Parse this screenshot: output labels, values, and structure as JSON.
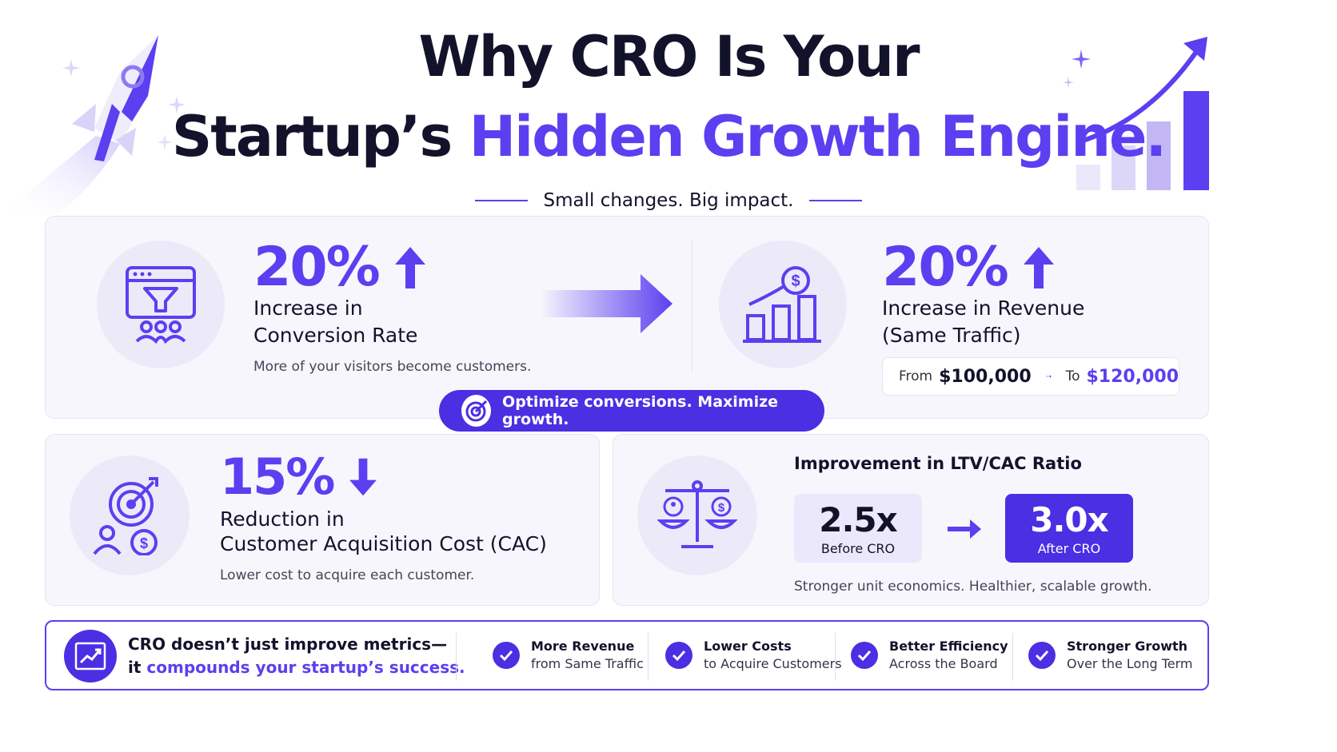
{
  "header": {
    "title_line1": "Why CRO Is Your",
    "title_line2_a": "Startup’s",
    "title_line2_b": "Hidden Growth Engine.",
    "subtitle": "Small changes. Big impact."
  },
  "conversion": {
    "value": "20%",
    "label_line1": "Increase in",
    "label_line2": "Conversion Rate",
    "description": "More of your visitors become customers."
  },
  "revenue": {
    "value": "20%",
    "label_line1": "Increase in Revenue",
    "label_line2": "(Same Traffic)",
    "from_label": "From",
    "from_value": "$100,000",
    "to_label": "To",
    "to_value": "$120,000"
  },
  "pill": {
    "text": "Optimize conversions. Maximize growth."
  },
  "cac": {
    "value": "15%",
    "label_line1": "Reduction in",
    "label_line2": "Customer Acquisition Cost (CAC)",
    "description": "Lower cost to acquire each customer."
  },
  "ltv": {
    "title": "Improvement in LTV/CAC Ratio",
    "before_value": "2.5x",
    "before_label": "Before CRO",
    "after_value": "3.0x",
    "after_label": "After CRO",
    "description": "Stronger unit economics. Healthier, scalable growth."
  },
  "bottom": {
    "headline_line1": "CRO doesn’t just improve metrics—",
    "headline_line2_a": "it",
    "headline_line2_b": "compounds your startup’s success.",
    "benefits": [
      {
        "title": "More Revenue",
        "subtitle": "from Same Traffic"
      },
      {
        "title": "Lower Costs",
        "subtitle": "to Acquire Customers"
      },
      {
        "title": "Better Efficiency",
        "subtitle": "Across the Board"
      },
      {
        "title": "Stronger Growth",
        "subtitle": "Over the Long Term"
      }
    ]
  },
  "colors": {
    "accent": "#5b3ff0",
    "accent_dark": "#4a2fe3",
    "ink": "#12132b",
    "card_bg": "#f7f6fd"
  },
  "icons": [
    "rocket-icon",
    "sparkle-icon",
    "growth-chart-icon",
    "funnel-browser-icon",
    "arrow-up-icon",
    "arrow-right-icon",
    "revenue-chart-icon",
    "target-icon",
    "arrow-down-icon",
    "scale-icon",
    "trend-icon",
    "check-icon"
  ]
}
